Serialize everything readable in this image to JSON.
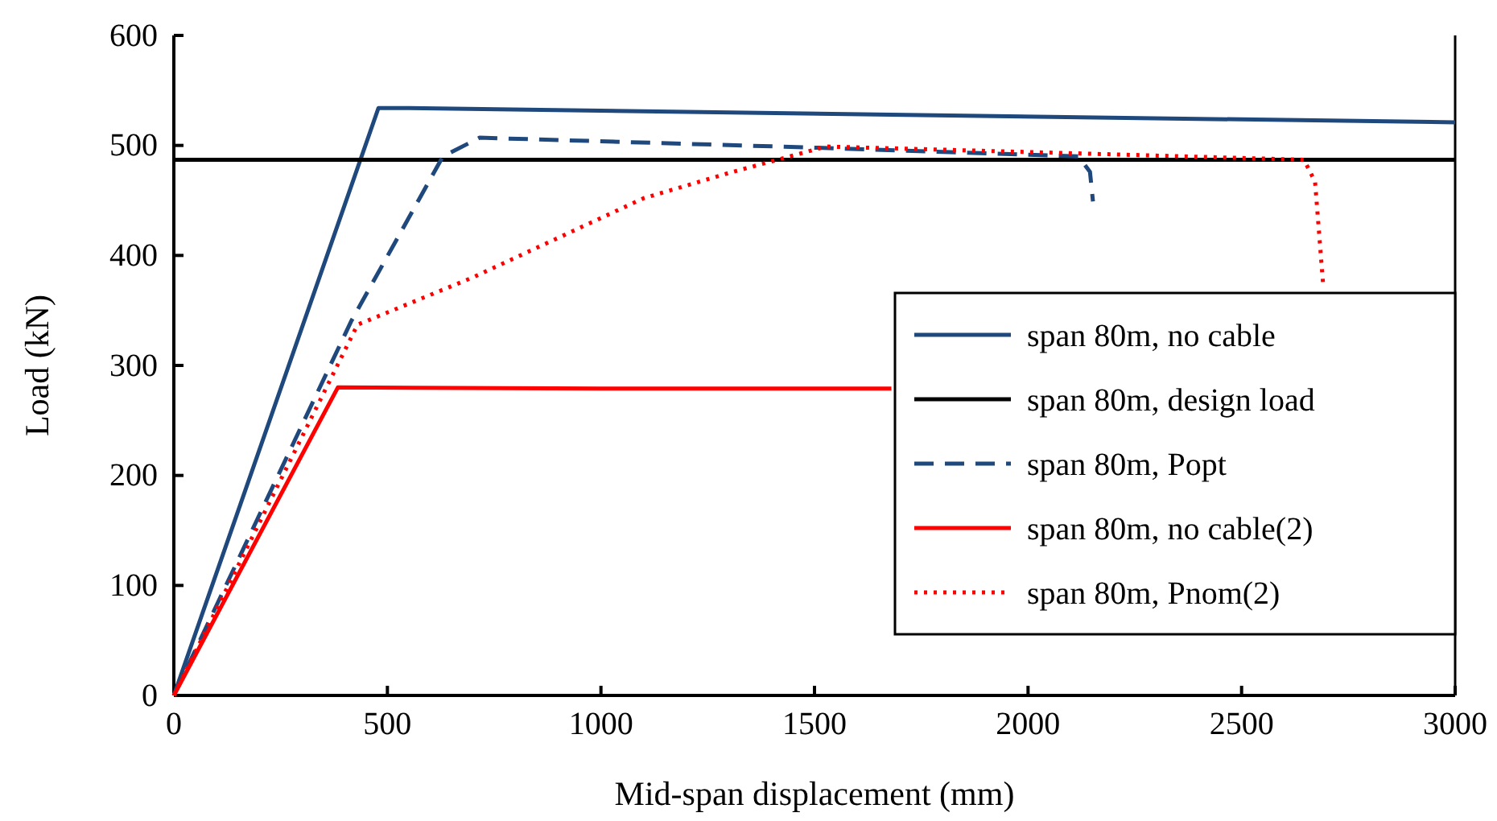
{
  "chart_data": {
    "type": "line",
    "xlabel": "Mid-span displacement (mm)",
    "ylabel": "Load (kN)",
    "xlim": [
      0,
      3000
    ],
    "xticks": [
      0,
      500,
      1000,
      1500,
      2000,
      2500,
      3000
    ],
    "ylim": [
      0,
      600
    ],
    "yticks": [
      0,
      100,
      200,
      300,
      400,
      500,
      600
    ],
    "grid": false,
    "legend": "right",
    "series": [
      {
        "name": "span 80m, no cable",
        "color": "#1f497d",
        "line_style": "solid",
        "x": [
          0,
          479,
          530,
          3000
        ],
        "values": [
          0,
          534,
          534,
          521
        ]
      },
      {
        "name": "span 80m, design load",
        "color": "#000000",
        "line_style": "solid",
        "x": [
          0,
          3000
        ],
        "values": [
          487,
          487
        ]
      },
      {
        "name": "span 80m, Popt",
        "color": "#1f497d",
        "line_style": "dashed",
        "x": [
          0,
          415,
          630,
          716,
          1500,
          2118,
          2145,
          2152
        ],
        "values": [
          0,
          340,
          490,
          507,
          498,
          490,
          476,
          449
        ]
      },
      {
        "name": "span 80m, no cable(2)",
        "color": "#ff0000",
        "line_style": "solid",
        "x": [
          0,
          384,
          1000,
          1680
        ],
        "values": [
          0,
          280,
          279,
          279
        ]
      },
      {
        "name": "span 80m, Pnom(2)",
        "color": "#ff0000",
        "line_style": "dotted",
        "x": [
          0,
          430,
          700,
          1100,
          1300,
          1527,
          2000,
          2646,
          2672,
          2691
        ],
        "values": [
          0,
          337,
          380,
          452,
          475,
          499,
          494,
          487,
          467,
          373
        ]
      }
    ]
  }
}
